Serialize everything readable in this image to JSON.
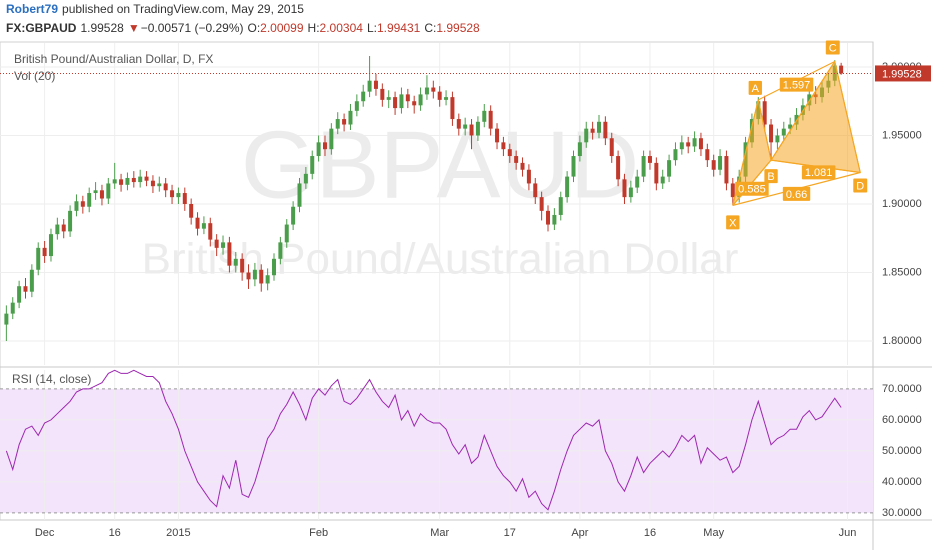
{
  "header": {
    "author": "Robert79",
    "published": "published on TradingView.com, May 29, 2015",
    "symbol": "FX:GBPAUD",
    "price": "1.99528",
    "arrow": "▼",
    "change": "−0.00571 (−0.29%)",
    "ohlc": [
      {
        "label": "O:",
        "value": "2.00099"
      },
      {
        "label": "H:",
        "value": "2.00304"
      },
      {
        "label": "L:",
        "value": "1.99431"
      },
      {
        "label": "C:",
        "value": "1.99528"
      }
    ]
  },
  "chart_data": [
    {
      "type": "candlestick",
      "legend": "British Pound/Australian Dollar, D, FX",
      "volume_label": "Vol (20)",
      "watermark": "GBPAUD",
      "watermark_subtitle": "British Pound/Australian Dollar",
      "up_color": "#4a9d4a",
      "down_color": "#c0392b",
      "grid": true,
      "xlim": [
        -1,
        136
      ],
      "ylim": [
        1.7825,
        2.0175
      ],
      "yticks": [
        {
          "value": 1.8,
          "label": "1.80000"
        },
        {
          "value": 1.85,
          "label": "1.85000"
        },
        {
          "value": 1.9,
          "label": "1.90000"
        },
        {
          "value": 1.95,
          "label": "1.95000"
        },
        {
          "value": 2,
          "label": "2.00000"
        }
      ],
      "last_price": {
        "value": 1.99528,
        "label": "1.99528"
      },
      "ohlc": [
        [
          1.812,
          1.826,
          1.8,
          1.82
        ],
        [
          1.82,
          1.832,
          1.816,
          1.828
        ],
        [
          1.828,
          1.844,
          1.824,
          1.84
        ],
        [
          1.84,
          1.846,
          1.831,
          1.836
        ],
        [
          1.836,
          1.856,
          1.832,
          1.852
        ],
        [
          1.852,
          1.872,
          1.848,
          1.868
        ],
        [
          1.868,
          1.873,
          1.857,
          1.862
        ],
        [
          1.862,
          1.882,
          1.858,
          1.878
        ],
        [
          1.878,
          1.89,
          1.874,
          1.885
        ],
        [
          1.885,
          1.889,
          1.875,
          1.88
        ],
        [
          1.88,
          1.899,
          1.876,
          1.895
        ],
        [
          1.895,
          1.907,
          1.891,
          1.902
        ],
        [
          1.902,
          1.906,
          1.893,
          1.898
        ],
        [
          1.898,
          1.912,
          1.894,
          1.908
        ],
        [
          1.908,
          1.916,
          1.903,
          1.91
        ],
        [
          1.91,
          1.914,
          1.899,
          1.904
        ],
        [
          1.904,
          1.919,
          1.9,
          1.915
        ],
        [
          1.915,
          1.93,
          1.911,
          1.918
        ],
        [
          1.918,
          1.922,
          1.909,
          1.914
        ],
        [
          1.914,
          1.923,
          1.91,
          1.919
        ],
        [
          1.919,
          1.924,
          1.912,
          1.916
        ],
        [
          1.916,
          1.925,
          1.912,
          1.92
        ],
        [
          1.92,
          1.924,
          1.913,
          1.917
        ],
        [
          1.917,
          1.921,
          1.908,
          1.913
        ],
        [
          1.913,
          1.92,
          1.909,
          1.915
        ],
        [
          1.915,
          1.919,
          1.905,
          1.91
        ],
        [
          1.91,
          1.914,
          1.9,
          1.905
        ],
        [
          1.905,
          1.912,
          1.9,
          1.908
        ],
        [
          1.908,
          1.912,
          1.895,
          1.9
        ],
        [
          1.9,
          1.904,
          1.885,
          1.89
        ],
        [
          1.89,
          1.894,
          1.877,
          1.882
        ],
        [
          1.882,
          1.891,
          1.878,
          1.886
        ],
        [
          1.886,
          1.89,
          1.869,
          1.874
        ],
        [
          1.874,
          1.878,
          1.862,
          1.868
        ],
        [
          1.868,
          1.877,
          1.863,
          1.872
        ],
        [
          1.872,
          1.876,
          1.85,
          1.855
        ],
        [
          1.855,
          1.865,
          1.85,
          1.86
        ],
        [
          1.86,
          1.864,
          1.844,
          1.85
        ],
        [
          1.85,
          1.856,
          1.838,
          1.845
        ],
        [
          1.845,
          1.857,
          1.84,
          1.852
        ],
        [
          1.852,
          1.856,
          1.836,
          1.842
        ],
        [
          1.842,
          1.853,
          1.837,
          1.848
        ],
        [
          1.848,
          1.864,
          1.844,
          1.86
        ],
        [
          1.86,
          1.876,
          1.856,
          1.872
        ],
        [
          1.872,
          1.889,
          1.868,
          1.885
        ],
        [
          1.885,
          1.902,
          1.881,
          1.898
        ],
        [
          1.898,
          1.919,
          1.894,
          1.915
        ],
        [
          1.915,
          1.927,
          1.911,
          1.922
        ],
        [
          1.922,
          1.939,
          1.918,
          1.935
        ],
        [
          1.935,
          1.95,
          1.931,
          1.945
        ],
        [
          1.945,
          1.95,
          1.935,
          1.94
        ],
        [
          1.94,
          1.959,
          1.936,
          1.955
        ],
        [
          1.955,
          1.967,
          1.951,
          1.962
        ],
        [
          1.962,
          1.966,
          1.953,
          1.958
        ],
        [
          1.958,
          1.973,
          1.954,
          1.968
        ],
        [
          1.968,
          1.98,
          1.964,
          1.975
        ],
        [
          1.975,
          1.987,
          1.971,
          1.982
        ],
        [
          1.982,
          2.008,
          1.978,
          1.99
        ],
        [
          1.99,
          1.995,
          1.979,
          1.984
        ],
        [
          1.984,
          1.988,
          1.971,
          1.976
        ],
        [
          1.976,
          1.983,
          1.97,
          1.978
        ],
        [
          1.978,
          1.982,
          1.965,
          1.97
        ],
        [
          1.97,
          1.985,
          1.966,
          1.98
        ],
        [
          1.98,
          1.984,
          1.97,
          1.975
        ],
        [
          1.975,
          1.979,
          1.966,
          1.972
        ],
        [
          1.972,
          1.985,
          1.968,
          1.98
        ],
        [
          1.98,
          1.994,
          1.976,
          1.985
        ],
        [
          1.985,
          1.99,
          1.977,
          1.982
        ],
        [
          1.982,
          1.986,
          1.971,
          1.976
        ],
        [
          1.976,
          1.983,
          1.972,
          1.978
        ],
        [
          1.978,
          1.982,
          1.957,
          1.962
        ],
        [
          1.962,
          1.966,
          1.95,
          1.955
        ],
        [
          1.955,
          1.963,
          1.95,
          1.958
        ],
        [
          1.958,
          1.962,
          1.94,
          1.95
        ],
        [
          1.95,
          1.964,
          1.946,
          1.96
        ],
        [
          1.96,
          1.973,
          1.956,
          1.968
        ],
        [
          1.968,
          1.972,
          1.95,
          1.955
        ],
        [
          1.955,
          1.959,
          1.94,
          1.945
        ],
        [
          1.945,
          1.949,
          1.935,
          1.94
        ],
        [
          1.94,
          1.944,
          1.93,
          1.935
        ],
        [
          1.935,
          1.939,
          1.925,
          1.93
        ],
        [
          1.93,
          1.934,
          1.92,
          1.925
        ],
        [
          1.925,
          1.929,
          1.91,
          1.915
        ],
        [
          1.915,
          1.919,
          1.9,
          1.905
        ],
        [
          1.905,
          1.909,
          1.888,
          1.895
        ],
        [
          1.895,
          1.899,
          1.88,
          1.885
        ],
        [
          1.885,
          1.897,
          1.881,
          1.892
        ],
        [
          1.892,
          1.909,
          1.888,
          1.905
        ],
        [
          1.905,
          1.924,
          1.901,
          1.92
        ],
        [
          1.92,
          1.939,
          1.916,
          1.935
        ],
        [
          1.935,
          1.95,
          1.931,
          1.945
        ],
        [
          1.945,
          1.96,
          1.941,
          1.955
        ],
        [
          1.955,
          1.96,
          1.947,
          1.952
        ],
        [
          1.952,
          1.965,
          1.948,
          1.96
        ],
        [
          1.96,
          1.964,
          1.943,
          1.948
        ],
        [
          1.948,
          1.952,
          1.93,
          1.935
        ],
        [
          1.935,
          1.939,
          1.913,
          1.918
        ],
        [
          1.918,
          1.922,
          1.9,
          1.905
        ],
        [
          1.905,
          1.917,
          1.901,
          1.912
        ],
        [
          1.912,
          1.925,
          1.908,
          1.92
        ],
        [
          1.92,
          1.939,
          1.916,
          1.935
        ],
        [
          1.935,
          1.939,
          1.925,
          1.93
        ],
        [
          1.93,
          1.934,
          1.91,
          1.915
        ],
        [
          1.915,
          1.925,
          1.911,
          1.92
        ],
        [
          1.92,
          1.936,
          1.916,
          1.932
        ],
        [
          1.932,
          1.945,
          1.928,
          1.94
        ],
        [
          1.94,
          1.95,
          1.936,
          1.945
        ],
        [
          1.945,
          1.949,
          1.937,
          1.942
        ],
        [
          1.942,
          1.953,
          1.938,
          1.948
        ],
        [
          1.948,
          1.952,
          1.935,
          1.94
        ],
        [
          1.94,
          1.944,
          1.927,
          1.932
        ],
        [
          1.932,
          1.936,
          1.92,
          1.925
        ],
        [
          1.925,
          1.94,
          1.921,
          1.935
        ],
        [
          1.935,
          1.939,
          1.91,
          1.915
        ],
        [
          1.915,
          1.919,
          1.899,
          1.905
        ],
        [
          1.905,
          1.925,
          1.901,
          1.92
        ],
        [
          1.92,
          1.949,
          1.916,
          1.945
        ],
        [
          1.945,
          1.966,
          1.941,
          1.962
        ],
        [
          1.962,
          1.978,
          1.958,
          1.975
        ],
        [
          1.975,
          1.979,
          1.953,
          1.958
        ],
        [
          1.958,
          1.962,
          1.932,
          1.945
        ],
        [
          1.945,
          1.955,
          1.94,
          1.95
        ],
        [
          1.95,
          1.96,
          1.946,
          1.955
        ],
        [
          1.955,
          1.963,
          1.951,
          1.958
        ],
        [
          1.958,
          1.97,
          1.954,
          1.965
        ],
        [
          1.965,
          1.977,
          1.961,
          1.972
        ],
        [
          1.972,
          1.985,
          1.968,
          1.98
        ],
        [
          1.98,
          1.986,
          1.973,
          1.978
        ],
        [
          1.978,
          1.99,
          1.974,
          1.985
        ],
        [
          1.985,
          1.995,
          1.981,
          1.99
        ],
        [
          1.99,
          2.005,
          1.986,
          2.001
        ],
        [
          2.00099,
          2.00304,
          1.99431,
          1.99528
        ]
      ],
      "pattern": {
        "color": "#f5a623",
        "points": [
          {
            "label": "X",
            "x": 114,
            "y": 1.899
          },
          {
            "label": "A",
            "x": 118,
            "y": 1.976
          },
          {
            "label": "B",
            "x": 120,
            "y": 1.932
          },
          {
            "label": "C",
            "x": 130,
            "y": 2.004
          },
          {
            "label": "D",
            "x": 134,
            "y": 1.923
          }
        ],
        "ratios": [
          "1.597",
          "0.585",
          "1.081",
          "0.66"
        ]
      }
    },
    {
      "type": "line",
      "title": "RSI (14, close)",
      "color": "#9c27b0",
      "band_color": "#f3e3fb",
      "xlim": [
        -1,
        136
      ],
      "ylim": [
        27.7,
        76.1
      ],
      "band": [
        30,
        70
      ],
      "yticks": [
        {
          "value": 30,
          "label": "30.0000"
        },
        {
          "value": 40,
          "label": "40.0000"
        },
        {
          "value": 50,
          "label": "50.0000"
        },
        {
          "value": 60,
          "label": "60.0000"
        },
        {
          "value": 70,
          "label": "70.0000"
        }
      ],
      "xticks": [
        {
          "value": 6,
          "label": "Dec"
        },
        {
          "value": 17,
          "label": "16"
        },
        {
          "value": 27,
          "label": "2015"
        },
        {
          "value": 49,
          "label": "Feb"
        },
        {
          "value": 68,
          "label": "Mar"
        },
        {
          "value": 79,
          "label": "17"
        },
        {
          "value": 90,
          "label": "Apr"
        },
        {
          "value": 101,
          "label": "16"
        },
        {
          "value": 111,
          "label": "May"
        },
        {
          "value": 132,
          "label": "Jun"
        }
      ],
      "values": [
        50,
        44,
        52,
        57,
        58,
        55,
        59,
        60,
        62,
        64,
        66,
        69,
        70,
        70,
        71,
        72,
        75,
        76,
        75,
        75,
        76,
        75,
        74,
        74,
        72,
        66,
        62,
        57,
        50,
        45,
        40,
        37,
        34,
        32,
        42,
        38,
        47,
        36,
        35,
        40,
        47,
        54,
        57,
        62,
        65,
        69,
        65,
        60,
        67,
        70,
        68,
        71,
        73,
        66,
        65,
        67,
        70,
        73,
        69,
        66,
        64,
        68,
        60,
        63,
        58,
        62,
        60,
        59,
        59,
        57,
        52,
        49,
        52,
        46,
        48,
        55,
        50,
        45,
        42,
        40,
        37,
        41,
        35,
        37,
        33,
        31,
        37,
        44,
        50,
        55,
        57,
        59,
        58,
        60,
        50,
        46,
        40,
        37,
        42,
        48,
        43,
        46,
        48,
        50,
        48,
        51,
        55,
        53,
        55,
        46,
        51,
        49,
        47,
        48,
        43,
        45,
        52,
        60,
        66,
        59,
        52,
        54,
        55,
        57,
        57,
        61,
        63,
        60,
        61,
        64,
        67,
        64
      ]
    }
  ]
}
